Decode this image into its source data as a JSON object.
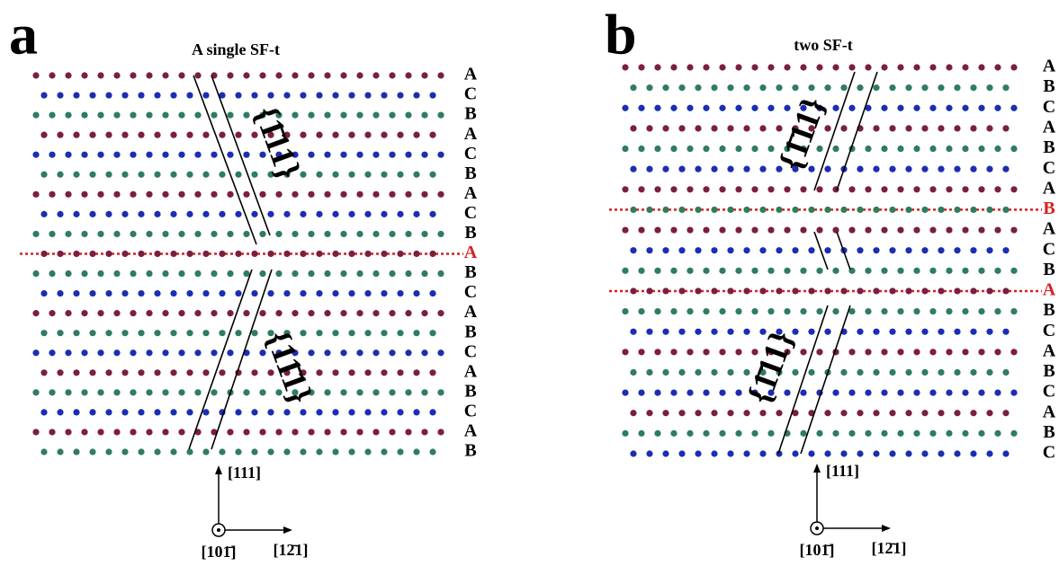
{
  "colors": {
    "A": "#7b1f3d",
    "B": "#2f7d5c",
    "C": "#1c2db3"
  },
  "highlight_color": "#d62020",
  "panels": [
    {
      "label": "a",
      "title": "A single SF-t",
      "layers": [
        "A",
        "C",
        "B",
        "A",
        "C",
        "B",
        "A",
        "C",
        "B",
        "A",
        "B",
        "C",
        "A",
        "B",
        "C",
        "A",
        "B",
        "C",
        "A",
        "B"
      ],
      "highlight": [
        9
      ],
      "planes": [
        "{1̄11}",
        "{11̄1}"
      ],
      "axes": {
        "up": "[111]",
        "out": "[101̄]",
        "right": "[12̄1]"
      }
    },
    {
      "label": "b",
      "title": "two  SF-t",
      "layers": [
        "A",
        "B",
        "C",
        "A",
        "B",
        "C",
        "A",
        "B",
        "A",
        "C",
        "B",
        "A",
        "B",
        "C",
        "A",
        "B",
        "C",
        "A",
        "B",
        "C"
      ],
      "highlight": [
        7,
        11
      ],
      "planes": [
        "{1̄11}",
        "{1̄11}"
      ],
      "axes": {
        "up": "[111]",
        "out": "[101̄]",
        "right": "[12̄1]"
      }
    }
  ]
}
